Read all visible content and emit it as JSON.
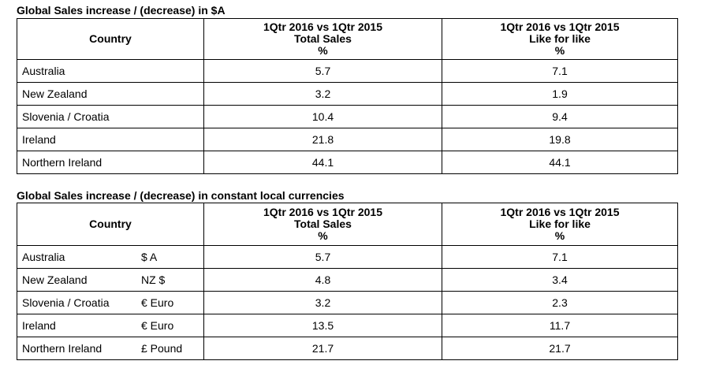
{
  "table1": {
    "title": "Global Sales increase / (decrease) in $A",
    "headers": {
      "country": "Country",
      "total": [
        "1Qtr 2016 vs 1Qtr 2015",
        "Total Sales",
        "%"
      ],
      "lfl": [
        "1Qtr 2016 vs 1Qtr 2015",
        "Like for like",
        "%"
      ]
    },
    "rows": [
      {
        "country": "Australia",
        "total": "5.7",
        "lfl": "7.1"
      },
      {
        "country": "New Zealand",
        "total": "3.2",
        "lfl": "1.9"
      },
      {
        "country": "Slovenia / Croatia",
        "total": "10.4",
        "lfl": "9.4"
      },
      {
        "country": "Ireland",
        "total": "21.8",
        "lfl": "19.8"
      },
      {
        "country": "Northern Ireland",
        "total": "44.1",
        "lfl": "44.1"
      }
    ]
  },
  "table2": {
    "title": "Global Sales increase / (decrease) in constant local currencies",
    "headers": {
      "country": "Country",
      "total": [
        "1Qtr 2016 vs 1Qtr 2015",
        "Total Sales",
        "%"
      ],
      "lfl": [
        "1Qtr 2016 vs 1Qtr 2015",
        "Like for like",
        "%"
      ]
    },
    "rows": [
      {
        "country": "Australia",
        "currency": "$ A",
        "total": "5.7",
        "lfl": "7.1"
      },
      {
        "country": "New Zealand",
        "currency": "NZ $",
        "total": "4.8",
        "lfl": "3.4"
      },
      {
        "country": "Slovenia / Croatia",
        "currency": "€ Euro",
        "total": "3.2",
        "lfl": "2.3"
      },
      {
        "country": "Ireland",
        "currency": "€ Euro",
        "total": "13.5",
        "lfl": "11.7"
      },
      {
        "country": "Northern Ireland",
        "currency": "£ Pound",
        "total": "21.7",
        "lfl": "21.7"
      }
    ]
  }
}
